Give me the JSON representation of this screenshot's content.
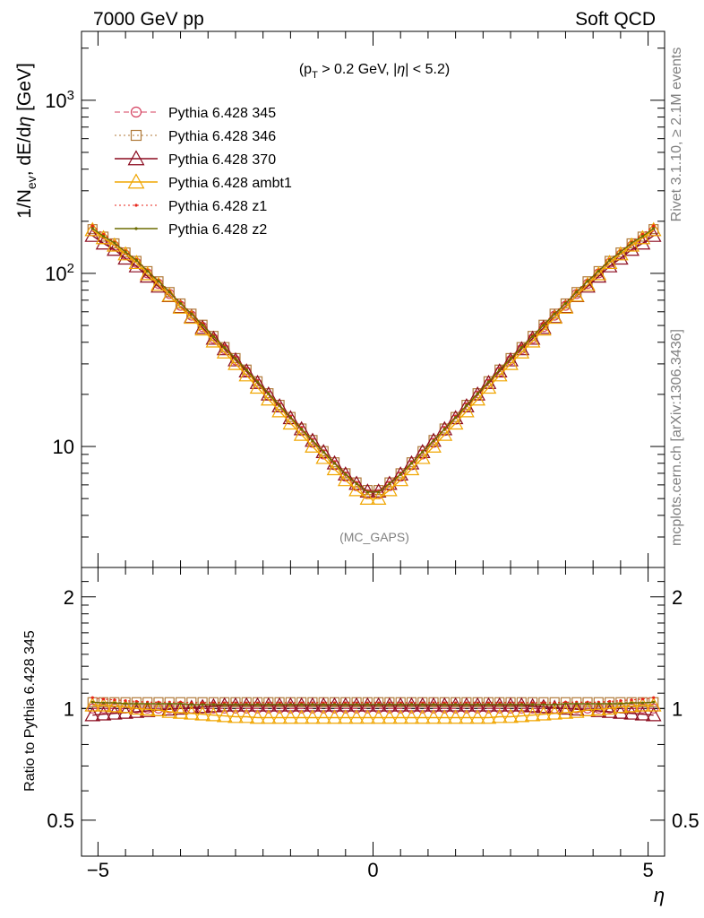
{
  "header": {
    "left": "7000 GeV pp",
    "right": "Soft QCD"
  },
  "side_texts": {
    "rivet": "Rivet 3.1.10, ≥ 2.1M events",
    "mcplots": "mcplots.cern.ch [arXiv:1306.3436]"
  },
  "chart_data": [
    {
      "type": "line",
      "title": "",
      "annotation": "(p_T > 0.2 GeV, |η| < 5.2)",
      "watermark": "(MC_GAPS)",
      "ylabel": "1/N_ev, dE/dη [GeV]",
      "xlabel": "η",
      "xlim": [
        -5.3,
        5.3
      ],
      "ylim": [
        2,
        2500
      ],
      "yscale": "log",
      "yticks": [
        {
          "value": 10,
          "label": "10"
        },
        {
          "value": 100,
          "label": "10^2"
        },
        {
          "value": 1000,
          "label": "10^3"
        }
      ],
      "xticks": [
        -5,
        0,
        5
      ],
      "legend_position": "top-left",
      "x": [
        -5.1,
        -4.9,
        -4.7,
        -4.5,
        -4.3,
        -4.1,
        -3.9,
        -3.7,
        -3.5,
        -3.3,
        -3.1,
        -2.9,
        -2.7,
        -2.5,
        -2.3,
        -2.1,
        -1.9,
        -1.7,
        -1.5,
        -1.3,
        -1.1,
        -0.9,
        -0.7,
        -0.5,
        -0.3,
        -0.1,
        0.1,
        0.3,
        0.5,
        0.7,
        0.9,
        1.1,
        1.3,
        1.5,
        1.7,
        1.9,
        2.1,
        2.3,
        2.5,
        2.7,
        2.9,
        3.1,
        3.3,
        3.5,
        3.7,
        3.9,
        4.1,
        4.3,
        4.5,
        4.7,
        4.9,
        5.1
      ],
      "series": [
        {
          "name": "Pythia 6.428 345",
          "color": "#d43f5e",
          "line": "dashed",
          "marker": "open-circle",
          "values": [
            175,
            158,
            144,
            128,
            115,
            100,
            87,
            76,
            65,
            57,
            49,
            42,
            36.5,
            31.5,
            27,
            23,
            19.7,
            16.8,
            14.3,
            12.3,
            10.5,
            9,
            7.8,
            6.7,
            5.9,
            5.3,
            5.3,
            5.9,
            6.7,
            7.8,
            9,
            10.5,
            12.3,
            14.3,
            16.8,
            19.7,
            23,
            27,
            31.5,
            36.5,
            42,
            49,
            57,
            65,
            76,
            87,
            100,
            115,
            128,
            144,
            158,
            175
          ]
        },
        {
          "name": "Pythia 6.428 346",
          "color": "#b07a3a",
          "line": "dotted",
          "marker": "open-square",
          "values": [
            180,
            163,
            149,
            132,
            118,
            103,
            90,
            78,
            67,
            58.5,
            50.5,
            43.5,
            37.5,
            32.4,
            27.8,
            23.8,
            20.3,
            17.4,
            14.8,
            12.7,
            10.9,
            9.4,
            8.1,
            7,
            6.2,
            5.6,
            5.6,
            6.2,
            7,
            8.1,
            9.4,
            10.9,
            12.7,
            14.8,
            17.4,
            20.3,
            23.8,
            27.8,
            32.4,
            37.5,
            43.5,
            50.5,
            58.5,
            67,
            78,
            90,
            103,
            118,
            132,
            149,
            163,
            180
          ]
        },
        {
          "name": "Pythia 6.428 370",
          "color": "#8b0a1e",
          "line": "solid",
          "marker": "open-triangle",
          "values": [
            165,
            149,
            137,
            122,
            110,
            96,
            84,
            74,
            64,
            56,
            48.5,
            42,
            36.5,
            31.5,
            27.2,
            23.3,
            20,
            17.1,
            14.6,
            12.6,
            10.8,
            9.3,
            8,
            6.9,
            6.1,
            5.5,
            5.5,
            6.1,
            6.9,
            8,
            9.3,
            10.8,
            12.6,
            14.6,
            17.1,
            20,
            23.3,
            27.2,
            31.5,
            36.5,
            42,
            48.5,
            56,
            64,
            74,
            84,
            96,
            110,
            122,
            137,
            149,
            165
          ]
        },
        {
          "name": "Pythia 6.428 ambt1",
          "color": "#f0a500",
          "line": "solid",
          "marker": "open-triangle",
          "values": [
            178,
            160,
            145,
            129,
            115,
            99,
            86,
            74.5,
            63.5,
            55.5,
            47.5,
            40.5,
            35,
            30,
            25.8,
            21.9,
            18.7,
            16,
            13.6,
            11.7,
            10,
            8.6,
            7.4,
            6.4,
            5.6,
            5,
            5,
            5.6,
            6.4,
            7.4,
            8.6,
            10,
            11.7,
            13.6,
            16,
            18.7,
            21.9,
            25.8,
            30,
            35,
            40.5,
            47.5,
            55.5,
            63.5,
            74.5,
            86,
            99,
            115,
            129,
            145,
            160,
            178
          ]
        },
        {
          "name": "Pythia 6.428 z1",
          "color": "#e8261b",
          "line": "dotted",
          "marker": "dot",
          "values": [
            188,
            168,
            152,
            135,
            120,
            104,
            91,
            79,
            68,
            59,
            51,
            43.7,
            37.8,
            32.6,
            28,
            23.9,
            20.4,
            17.5,
            14.9,
            12.8,
            10.9,
            9.4,
            8.1,
            7,
            6.2,
            5.5,
            5.5,
            6.2,
            7,
            8.1,
            9.4,
            10.9,
            12.8,
            14.9,
            17.5,
            20.4,
            23.9,
            28,
            32.6,
            37.8,
            43.7,
            51,
            59,
            68,
            79,
            91,
            104,
            120,
            135,
            152,
            168,
            188
          ]
        },
        {
          "name": "Pythia 6.428 z2",
          "color": "#6b6b00",
          "line": "solid",
          "marker": "dot",
          "values": [
            182,
            164,
            150,
            133,
            119,
            103,
            90,
            78,
            67,
            58.3,
            50.3,
            43.2,
            37.3,
            32.2,
            27.7,
            23.6,
            20.2,
            17.3,
            14.7,
            12.6,
            10.8,
            9.3,
            8,
            6.9,
            6.1,
            5.45,
            5.45,
            6.1,
            6.9,
            8,
            9.3,
            10.8,
            12.6,
            14.7,
            17.3,
            20.2,
            23.6,
            27.7,
            32.2,
            37.3,
            43.2,
            50.3,
            58.3,
            67,
            78,
            90,
            103,
            119,
            133,
            150,
            164,
            182
          ]
        }
      ]
    },
    {
      "type": "line",
      "title": "",
      "ylabel": "Ratio to Pythia 6.428 345",
      "xlabel": "η",
      "xlim": [
        -5.3,
        5.3
      ],
      "ylim": [
        0.4,
        2.4
      ],
      "yscale": "log",
      "yticks": [
        {
          "value": 0.5,
          "label": "0.5"
        },
        {
          "value": 1,
          "label": "1"
        },
        {
          "value": 2,
          "label": "2"
        }
      ],
      "xticks": [
        -5,
        0,
        5
      ],
      "reference_line": 1,
      "x": [
        -5.1,
        -4.9,
        -4.7,
        -4.5,
        -4.3,
        -4.1,
        -3.9,
        -3.7,
        -3.5,
        -3.3,
        -3.1,
        -2.9,
        -2.7,
        -2.5,
        -2.3,
        -2.1,
        -1.9,
        -1.7,
        -1.5,
        -1.3,
        -1.1,
        -0.9,
        -0.7,
        -0.5,
        -0.3,
        -0.1,
        0.1,
        0.3,
        0.5,
        0.7,
        0.9,
        1.1,
        1.3,
        1.5,
        1.7,
        1.9,
        2.1,
        2.3,
        2.5,
        2.7,
        2.9,
        3.1,
        3.3,
        3.5,
        3.7,
        3.9,
        4.1,
        4.3,
        4.5,
        4.7,
        4.9,
        5.1
      ],
      "series": [
        {
          "name": "Pythia 6.428 345",
          "color": "#d43f5e",
          "line": "dashed",
          "marker": "open-circle",
          "values": [
            1,
            1,
            1,
            1,
            1,
            1,
            1,
            1,
            1,
            1,
            1,
            1,
            1,
            1,
            1,
            1,
            1,
            1,
            1,
            1,
            1,
            1,
            1,
            1,
            1,
            1,
            1,
            1,
            1,
            1,
            1,
            1,
            1,
            1,
            1,
            1,
            1,
            1,
            1,
            1,
            1,
            1,
            1,
            1,
            1,
            1,
            1,
            1,
            1,
            1,
            1,
            1
          ]
        },
        {
          "name": "Pythia 6.428 346",
          "color": "#b07a3a",
          "line": "dotted",
          "marker": "open-square",
          "values": [
            1.04,
            1.04,
            1.04,
            1.04,
            1.04,
            1.04,
            1.04,
            1.04,
            1.04,
            1.04,
            1.04,
            1.04,
            1.04,
            1.04,
            1.04,
            1.04,
            1.04,
            1.04,
            1.04,
            1.04,
            1.04,
            1.04,
            1.04,
            1.04,
            1.04,
            1.04,
            1.04,
            1.04,
            1.04,
            1.04,
            1.04,
            1.04,
            1.04,
            1.04,
            1.04,
            1.04,
            1.04,
            1.04,
            1.04,
            1.04,
            1.04,
            1.04,
            1.04,
            1.04,
            1.04,
            1.04,
            1.04,
            1.04,
            1.04,
            1.04,
            1.04,
            1.04
          ]
        },
        {
          "name": "Pythia 6.428 370",
          "color": "#8b0a1e",
          "line": "solid",
          "marker": "open-triangle",
          "values": [
            0.96,
            0.965,
            0.97,
            0.975,
            0.98,
            0.985,
            0.99,
            0.995,
            1.0,
            1.005,
            1.01,
            1.015,
            1.02,
            1.02,
            1.02,
            1.02,
            1.02,
            1.02,
            1.02,
            1.02,
            1.02,
            1.02,
            1.02,
            1.02,
            1.02,
            1.02,
            1.02,
            1.02,
            1.02,
            1.02,
            1.02,
            1.02,
            1.02,
            1.02,
            1.02,
            1.02,
            1.02,
            1.02,
            1.02,
            1.02,
            1.015,
            1.01,
            1.005,
            1.0,
            0.995,
            0.99,
            0.985,
            0.98,
            0.975,
            0.97,
            0.965,
            0.96
          ]
        },
        {
          "name": "Pythia 6.428 ambt1",
          "color": "#f0a500",
          "line": "solid",
          "marker": "open-triangle",
          "values": [
            1.02,
            1.02,
            1.015,
            1.01,
            1.0,
            0.995,
            0.99,
            0.98,
            0.975,
            0.97,
            0.965,
            0.96,
            0.955,
            0.95,
            0.95,
            0.945,
            0.945,
            0.945,
            0.945,
            0.945,
            0.945,
            0.945,
            0.945,
            0.945,
            0.945,
            0.945,
            0.945,
            0.945,
            0.945,
            0.945,
            0.945,
            0.945,
            0.945,
            0.945,
            0.945,
            0.945,
            0.945,
            0.95,
            0.95,
            0.955,
            0.96,
            0.965,
            0.97,
            0.975,
            0.98,
            0.99,
            0.995,
            1.0,
            1.01,
            1.015,
            1.02,
            1.02
          ]
        },
        {
          "name": "Pythia 6.428 z1",
          "color": "#e8261b",
          "line": "dotted",
          "marker": "dot",
          "values": [
            1.07,
            1.06,
            1.055,
            1.05,
            1.045,
            1.04,
            1.04,
            1.04,
            1.04,
            1.035,
            1.035,
            1.035,
            1.035,
            1.035,
            1.035,
            1.035,
            1.035,
            1.035,
            1.035,
            1.035,
            1.035,
            1.035,
            1.035,
            1.035,
            1.035,
            1.035,
            1.035,
            1.035,
            1.035,
            1.035,
            1.035,
            1.035,
            1.035,
            1.035,
            1.035,
            1.035,
            1.035,
            1.035,
            1.035,
            1.035,
            1.035,
            1.035,
            1.035,
            1.04,
            1.04,
            1.04,
            1.04,
            1.045,
            1.05,
            1.055,
            1.06,
            1.07
          ]
        },
        {
          "name": "Pythia 6.428 z2",
          "color": "#6b6b00",
          "line": "solid",
          "marker": "dot",
          "values": [
            1.04,
            1.035,
            1.035,
            1.03,
            1.03,
            1.03,
            1.03,
            1.03,
            1.03,
            1.025,
            1.025,
            1.025,
            1.025,
            1.025,
            1.025,
            1.025,
            1.025,
            1.025,
            1.025,
            1.025,
            1.025,
            1.025,
            1.025,
            1.025,
            1.025,
            1.025,
            1.025,
            1.025,
            1.025,
            1.025,
            1.025,
            1.025,
            1.025,
            1.025,
            1.025,
            1.025,
            1.025,
            1.025,
            1.025,
            1.025,
            1.025,
            1.025,
            1.025,
            1.03,
            1.03,
            1.03,
            1.03,
            1.03,
            1.03,
            1.035,
            1.035,
            1.04
          ]
        }
      ]
    }
  ]
}
